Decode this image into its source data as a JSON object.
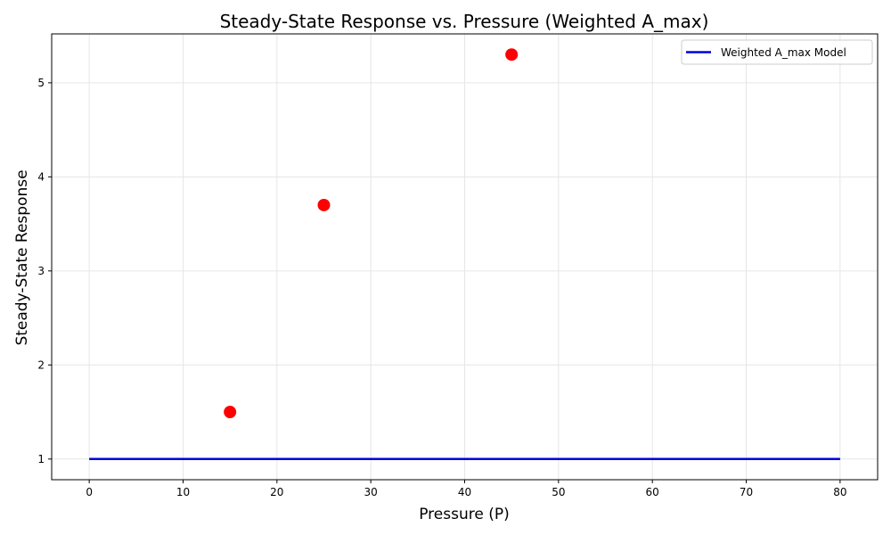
{
  "chart_data": {
    "type": "scatter",
    "title": "Steady-State Response vs. Pressure (Weighted A_max)",
    "xlabel": "Pressure (P)",
    "ylabel": "Steady-State Response",
    "xlim": [
      -4,
      84
    ],
    "ylim": [
      0.78,
      5.52
    ],
    "xticks": [
      0,
      10,
      20,
      30,
      40,
      50,
      60,
      70,
      80
    ],
    "yticks": [
      1,
      2,
      3,
      4,
      5
    ],
    "grid": true,
    "legend_position": "top-right",
    "series": [
      {
        "name": "Weighted A_max Model",
        "kind": "line",
        "color": "#0000dd",
        "x": [
          0,
          80
        ],
        "y": [
          1.0,
          1.0
        ]
      },
      {
        "kind": "scatter",
        "color": "#ff0000",
        "x": [
          15,
          25,
          45
        ],
        "y": [
          1.5,
          3.7,
          5.3
        ]
      }
    ]
  }
}
